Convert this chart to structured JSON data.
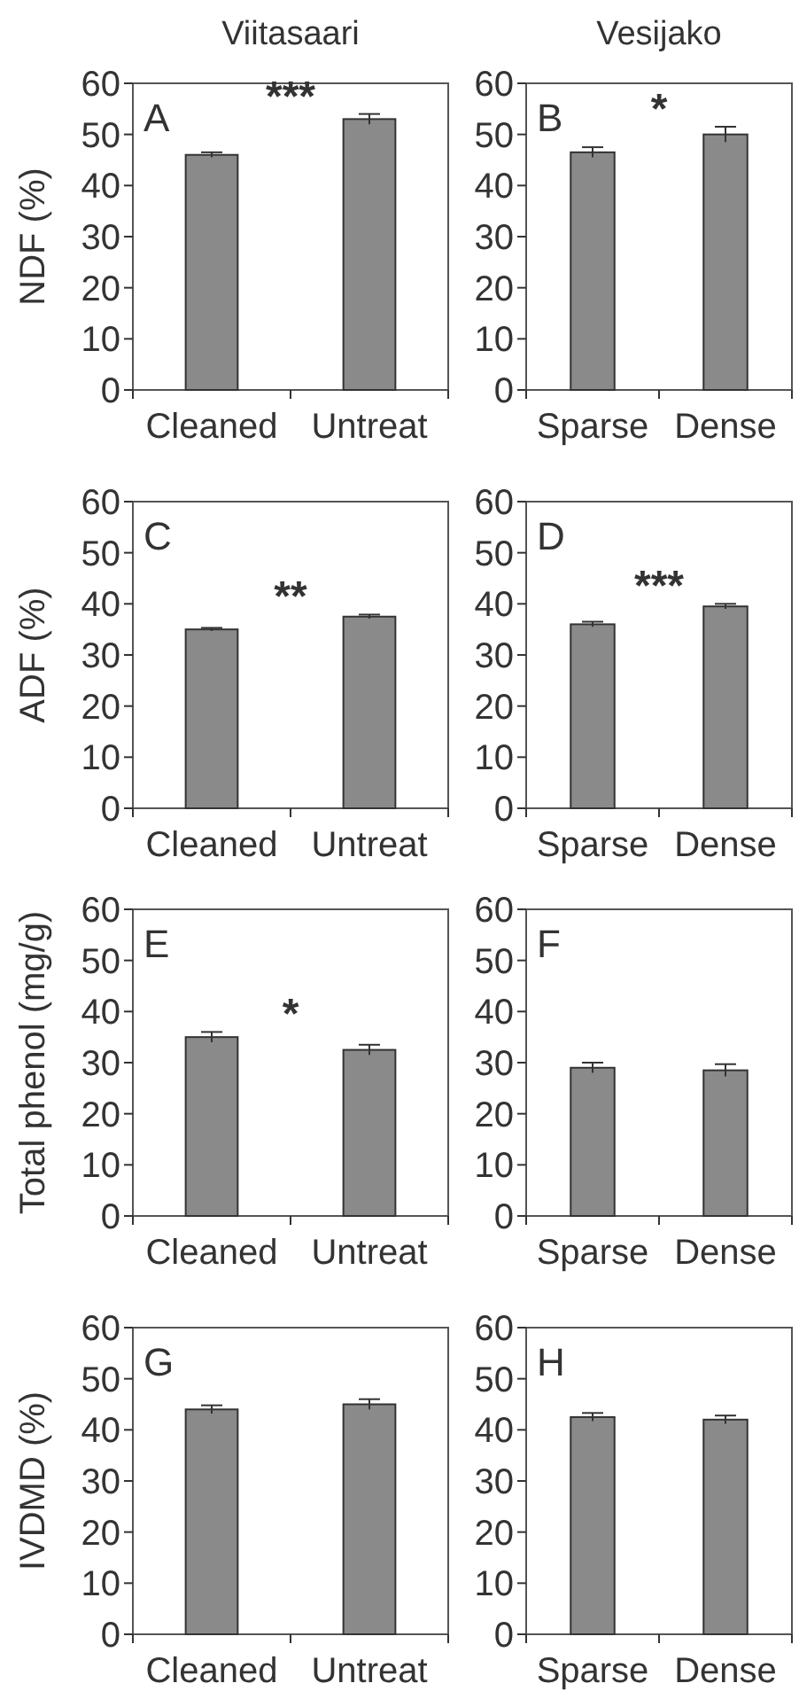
{
  "chart_data": [
    {
      "type": "bar",
      "title": "Viitasaari",
      "ylabel": "NDF (%)",
      "categories": [
        "Cleaned",
        "Untreat"
      ],
      "values": [
        46,
        53
      ],
      "errors": [
        0.5,
        1
      ],
      "color": "#8a8a8a",
      "ylim": [
        0,
        60
      ],
      "yticks": [
        0,
        10,
        20,
        30,
        40,
        50,
        60
      ],
      "annotations": [
        "A",
        "***"
      ]
    },
    {
      "type": "bar",
      "title": "Vesijako",
      "categories": [
        "Sparse",
        "Dense"
      ],
      "values": [
        46.5,
        50
      ],
      "errors": [
        1,
        1.5
      ],
      "color": "#8a8a8a",
      "ylim": [
        0,
        60
      ],
      "yticks": [
        0,
        10,
        20,
        30,
        40,
        50,
        60
      ],
      "annotations": [
        "B",
        "*"
      ]
    },
    {
      "type": "bar",
      "ylabel": "ADF (%)",
      "categories": [
        "Cleaned",
        "Untreat"
      ],
      "values": [
        35,
        37.5
      ],
      "errors": [
        0.3,
        0.4
      ],
      "color": "#8a8a8a",
      "ylim": [
        0,
        60
      ],
      "yticks": [
        0,
        10,
        20,
        30,
        40,
        50,
        60
      ],
      "annotations": [
        "C",
        "**"
      ]
    },
    {
      "type": "bar",
      "categories": [
        "Sparse",
        "Dense"
      ],
      "values": [
        36,
        39.5
      ],
      "errors": [
        0.5,
        0.5
      ],
      "color": "#8a8a8a",
      "ylim": [
        0,
        60
      ],
      "yticks": [
        0,
        10,
        20,
        30,
        40,
        50,
        60
      ],
      "annotations": [
        "D",
        "***"
      ]
    },
    {
      "type": "bar",
      "ylabel": "Total phenol (mg/g)",
      "categories": [
        "Cleaned",
        "Untreat"
      ],
      "values": [
        35,
        32.5
      ],
      "errors": [
        1,
        1
      ],
      "color": "#8a8a8a",
      "ylim": [
        0,
        60
      ],
      "yticks": [
        0,
        10,
        20,
        30,
        40,
        50,
        60
      ],
      "annotations": [
        "E",
        "*"
      ]
    },
    {
      "type": "bar",
      "categories": [
        "Sparse",
        "Dense"
      ],
      "values": [
        29,
        28.5
      ],
      "errors": [
        1,
        1.2
      ],
      "color": "#8a8a8a",
      "ylim": [
        0,
        60
      ],
      "yticks": [
        0,
        10,
        20,
        30,
        40,
        50,
        60
      ],
      "annotations": [
        "F"
      ]
    },
    {
      "type": "bar",
      "ylabel": "IVDMD (%)",
      "categories": [
        "Cleaned",
        "Untreat"
      ],
      "values": [
        44,
        45
      ],
      "errors": [
        0.8,
        1
      ],
      "color": "#8a8a8a",
      "ylim": [
        0,
        60
      ],
      "yticks": [
        0,
        10,
        20,
        30,
        40,
        50,
        60
      ],
      "annotations": [
        "G"
      ]
    },
    {
      "type": "bar",
      "categories": [
        "Sparse",
        "Dense"
      ],
      "values": [
        42.5,
        42
      ],
      "errors": [
        0.8,
        0.8
      ],
      "color": "#8a8a8a",
      "ylim": [
        0,
        60
      ],
      "yticks": [
        0,
        10,
        20,
        30,
        40,
        50,
        60
      ],
      "annotations": [
        "H"
      ]
    }
  ]
}
